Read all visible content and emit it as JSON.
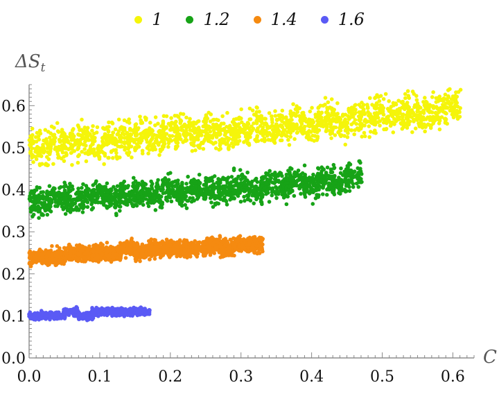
{
  "chart_data": {
    "type": "scatter",
    "xlabel": "C",
    "ylabel": "ΔS",
    "ylabel_subscript": "t",
    "xlim": [
      0.0,
      0.63
    ],
    "ylim": [
      0.0,
      0.65
    ],
    "x_ticks": [
      "0.0",
      "0.1",
      "0.2",
      "0.3",
      "0.4",
      "0.5",
      "0.6"
    ],
    "y_ticks": [
      "0.0",
      "0.1",
      "0.2",
      "0.3",
      "0.4",
      "0.5",
      "0.6"
    ],
    "legend_position": "top-center",
    "series": [
      {
        "name": "1",
        "color": "#f5f50a",
        "x": [
          0.0,
          0.02,
          0.04,
          0.06,
          0.08,
          0.1,
          0.12,
          0.14,
          0.16,
          0.18,
          0.2,
          0.22,
          0.24,
          0.26,
          0.28,
          0.3,
          0.32,
          0.34,
          0.36,
          0.38,
          0.4,
          0.42,
          0.44,
          0.46,
          0.48,
          0.5,
          0.52,
          0.54,
          0.56,
          0.58,
          0.6
        ],
        "y": [
          0.5,
          0.5,
          0.51,
          0.51,
          0.52,
          0.51,
          0.52,
          0.52,
          0.53,
          0.52,
          0.53,
          0.54,
          0.53,
          0.54,
          0.53,
          0.54,
          0.55,
          0.55,
          0.55,
          0.56,
          0.55,
          0.57,
          0.56,
          0.57,
          0.57,
          0.58,
          0.58,
          0.59,
          0.58,
          0.59,
          0.6
        ]
      },
      {
        "name": "1.2",
        "color": "#17a317",
        "x": [
          0.0,
          0.02,
          0.04,
          0.06,
          0.08,
          0.1,
          0.12,
          0.14,
          0.16,
          0.18,
          0.2,
          0.22,
          0.24,
          0.26,
          0.28,
          0.3,
          0.32,
          0.34,
          0.36,
          0.38,
          0.4,
          0.42,
          0.44,
          0.46
        ],
        "y": [
          0.37,
          0.37,
          0.38,
          0.38,
          0.38,
          0.39,
          0.38,
          0.39,
          0.39,
          0.39,
          0.4,
          0.39,
          0.4,
          0.4,
          0.4,
          0.41,
          0.4,
          0.41,
          0.41,
          0.42,
          0.41,
          0.42,
          0.42,
          0.43
        ]
      },
      {
        "name": "1.4",
        "color": "#f58a10",
        "x": [
          0.0,
          0.02,
          0.04,
          0.06,
          0.08,
          0.1,
          0.12,
          0.14,
          0.16,
          0.18,
          0.2,
          0.22,
          0.24,
          0.26,
          0.28,
          0.3,
          0.32
        ],
        "y": [
          0.24,
          0.24,
          0.24,
          0.25,
          0.25,
          0.25,
          0.25,
          0.26,
          0.25,
          0.26,
          0.26,
          0.26,
          0.26,
          0.27,
          0.26,
          0.27,
          0.27
        ]
      },
      {
        "name": "1.6",
        "color": "#5a5af5",
        "x": [
          0.0,
          0.02,
          0.04,
          0.06,
          0.08,
          0.1,
          0.12,
          0.14,
          0.16
        ],
        "y": [
          0.1,
          0.1,
          0.1,
          0.11,
          0.1,
          0.11,
          0.11,
          0.11,
          0.11
        ]
      }
    ]
  }
}
